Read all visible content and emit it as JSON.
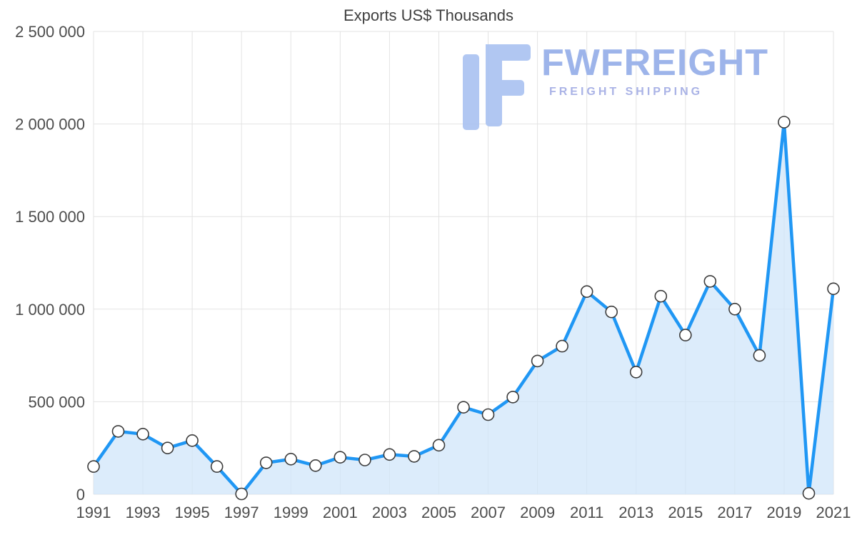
{
  "watermark": {
    "title": "FWFREIGHT",
    "subtitle": "FREIGHT SHIPPING"
  },
  "chart_data": {
    "type": "line",
    "title": "Exports US$ Thousands",
    "x": [
      1991,
      1992,
      1993,
      1994,
      1995,
      1996,
      1997,
      1998,
      1999,
      2000,
      2001,
      2002,
      2003,
      2004,
      2005,
      2006,
      2007,
      2008,
      2009,
      2010,
      2011,
      2012,
      2013,
      2014,
      2015,
      2016,
      2017,
      2018,
      2019,
      2020,
      2021
    ],
    "values": [
      150000,
      340000,
      325000,
      250000,
      290000,
      150000,
      2000,
      170000,
      190000,
      155000,
      200000,
      185000,
      215000,
      205000,
      265000,
      470000,
      430000,
      525000,
      720000,
      800000,
      1095000,
      985000,
      660000,
      1070000,
      860000,
      1150000,
      1000000,
      750000,
      2010000,
      5000,
      1110000
    ],
    "ylim": [
      0,
      2500000
    ],
    "y_ticks": [
      0,
      500000,
      1000000,
      1500000,
      2000000,
      2500000
    ],
    "x_tick_labels": [
      1991,
      1993,
      1995,
      1997,
      1999,
      2001,
      2003,
      2005,
      2007,
      2009,
      2011,
      2013,
      2015,
      2017,
      2019,
      2021
    ],
    "grid": true,
    "legend": "none",
    "line_color": "#2097f4",
    "area_color": "rgba(208,230,250,0.75)",
    "marker_fill": "#ffffff",
    "marker_stroke": "#3c3c3c"
  }
}
